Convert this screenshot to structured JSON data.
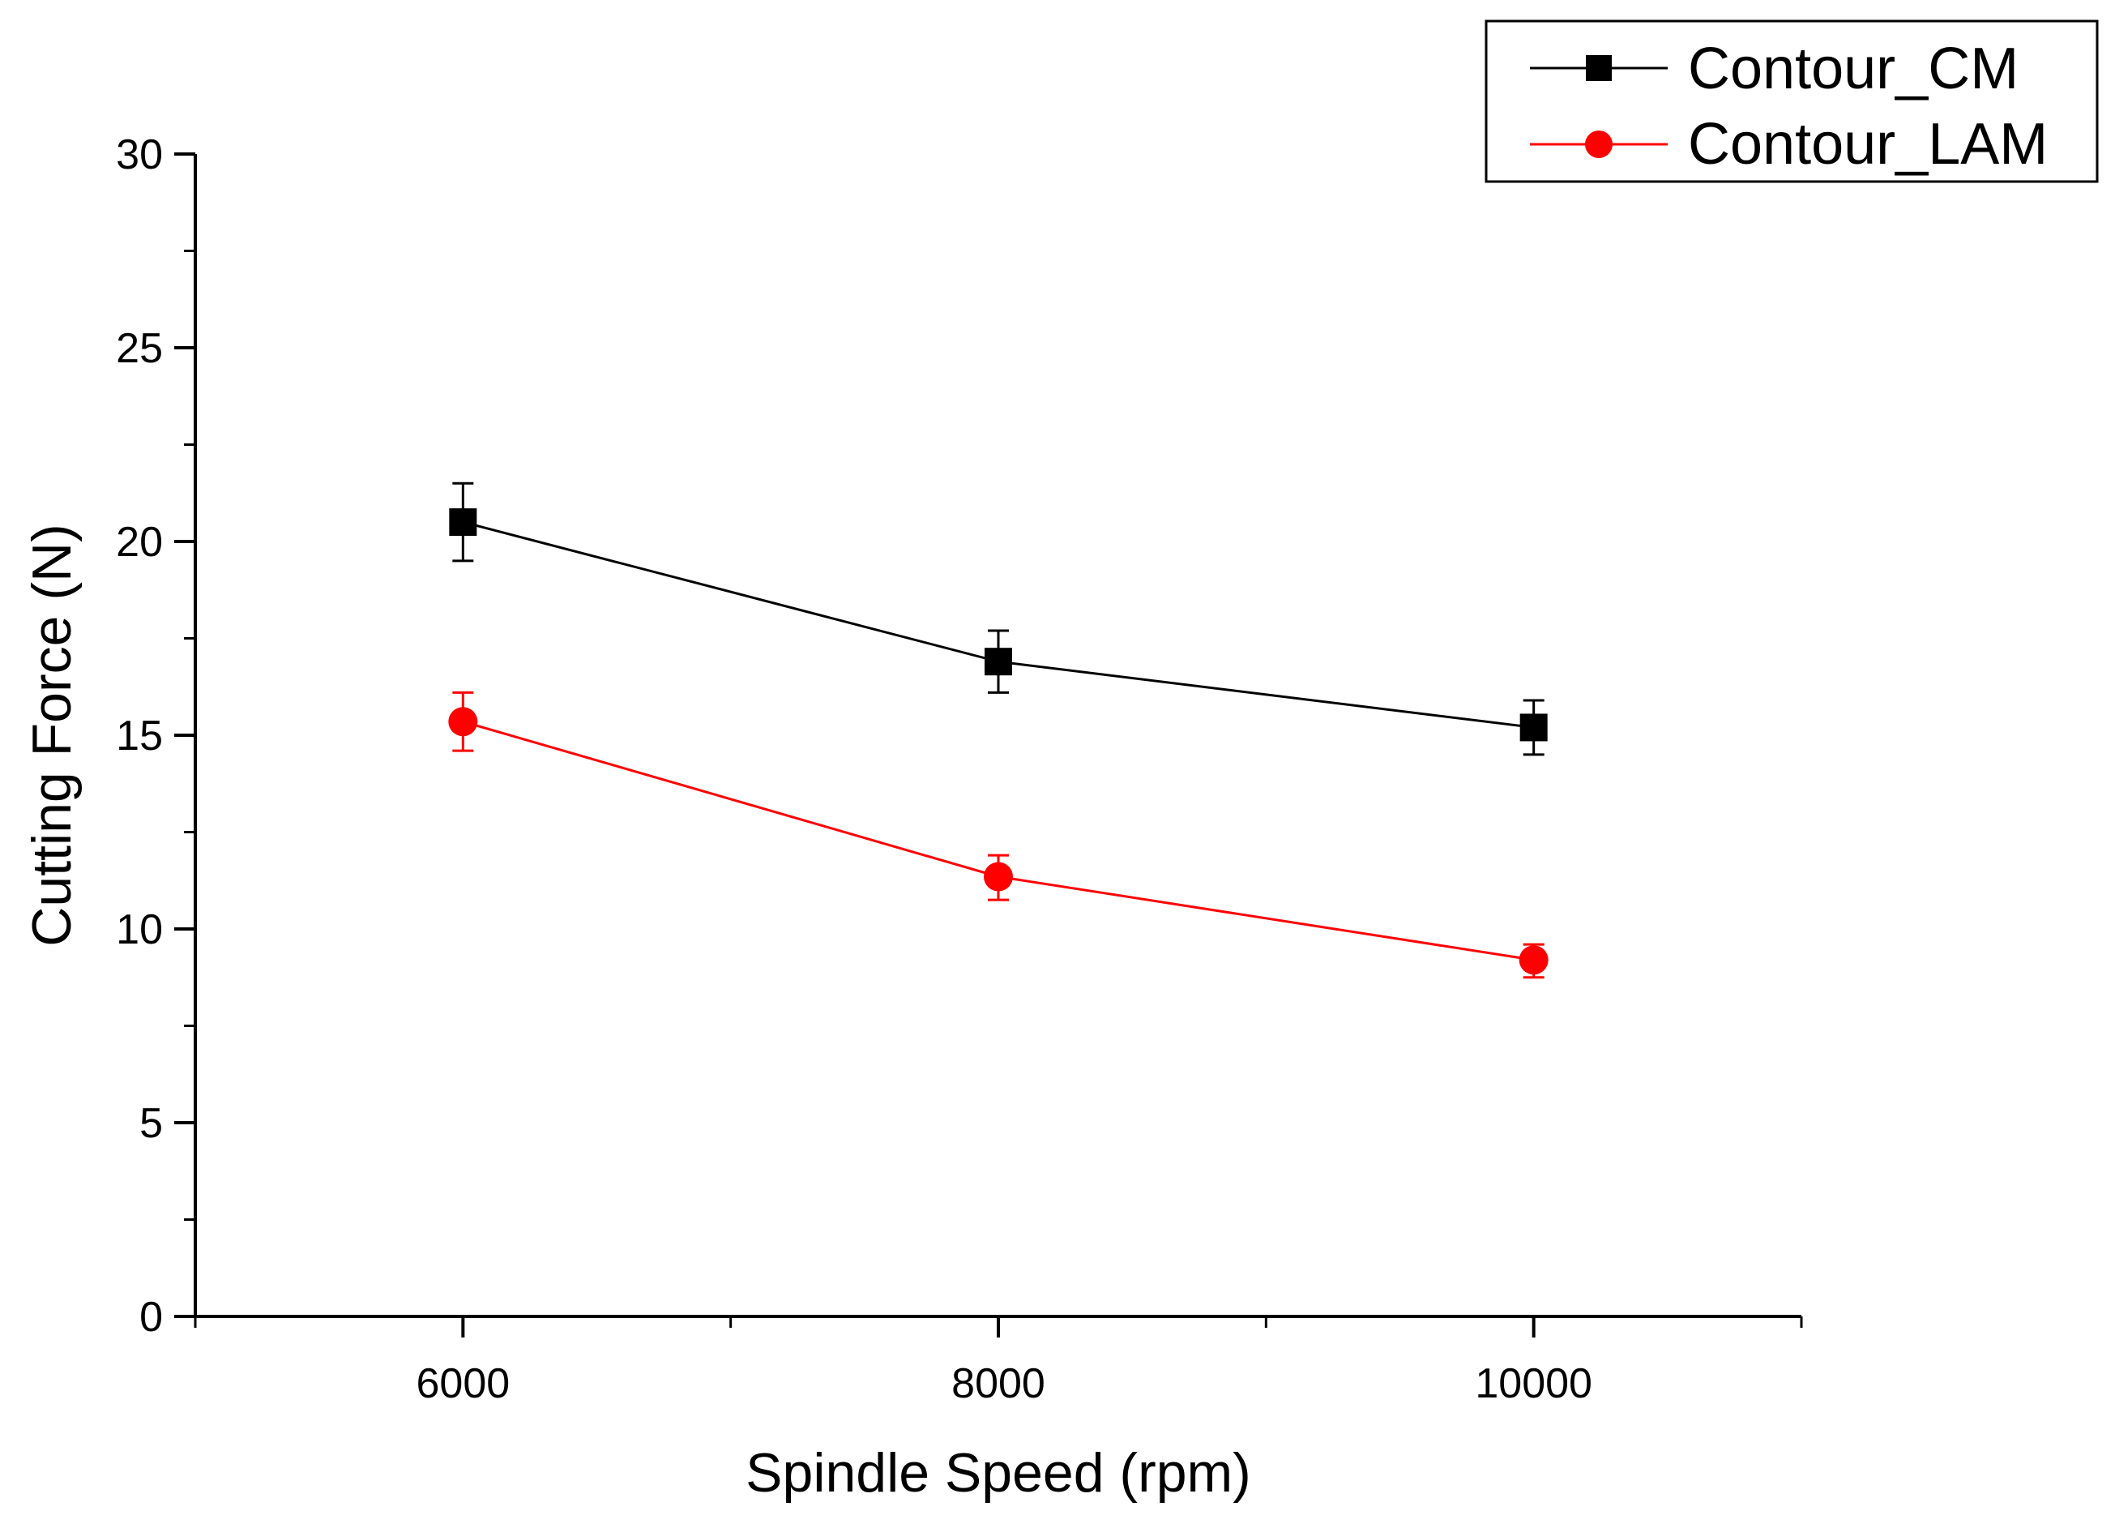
{
  "chart_data": {
    "type": "line",
    "title": "",
    "xlabel": "Spindle Speed (rpm)",
    "ylabel": "Cutting Force (N)",
    "xlim": [
      5000,
      11000
    ],
    "ylim": [
      0,
      30
    ],
    "x_ticks": [
      "6000",
      "8000",
      "10000"
    ],
    "y_ticks": [
      "0",
      "5",
      "10",
      "15",
      "20",
      "25",
      "30"
    ],
    "x": [
      6000,
      8000,
      10000
    ],
    "grid": false,
    "legend_position": "top-right",
    "series": [
      {
        "name": "Contour_CM",
        "marker": "square",
        "color": "#000000",
        "values": [
          20.5,
          16.9,
          15.2
        ],
        "error_high": [
          21.5,
          17.7,
          15.9
        ],
        "error_low": [
          19.5,
          16.1,
          14.5
        ]
      },
      {
        "name": "Contour_LAM",
        "marker": "circle",
        "color": "#ff0000",
        "values": [
          15.35,
          11.35,
          9.2
        ],
        "error_high": [
          16.1,
          11.9,
          9.6
        ],
        "error_low": [
          14.6,
          10.75,
          8.75
        ]
      }
    ]
  }
}
